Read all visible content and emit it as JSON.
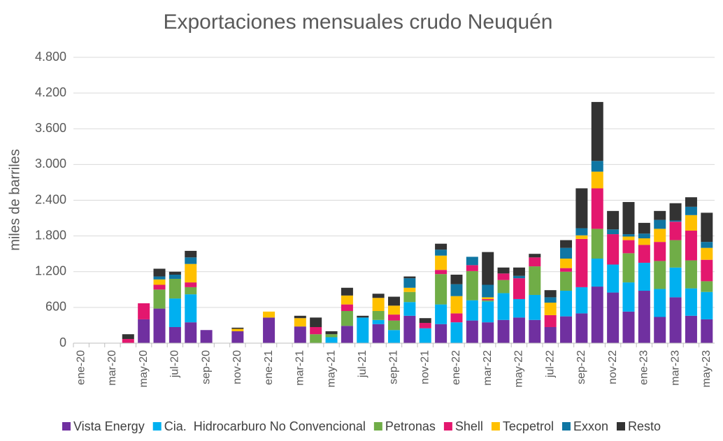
{
  "chart_data": {
    "type": "stacked_bar",
    "title": "Exportaciones mensuales crudo Neuquén",
    "y_label": "miles de barriles",
    "categories": [
      "ene-20",
      null,
      "mar-20",
      null,
      "may-20",
      null,
      "jul-20",
      null,
      "sep-20",
      null,
      "nov-20",
      null,
      "ene-21",
      null,
      "mar-21",
      null,
      "may-21",
      null,
      "jul-21",
      null,
      "sep-21",
      null,
      "nov-21",
      null,
      "ene-22",
      null,
      "mar-22",
      null,
      "may-22",
      null,
      "jul-22",
      null,
      "sep-22",
      null,
      "nov-22",
      null,
      "ene-23",
      null,
      "mar-23",
      null,
      "may-23"
    ],
    "series": [
      {
        "name": "Vista Energy",
        "color": "#7030a0",
        "values": [
          0,
          0,
          0,
          0,
          400,
          580,
          270,
          350,
          220,
          0,
          200,
          0,
          430,
          0,
          280,
          0,
          0,
          290,
          0,
          320,
          0,
          460,
          0,
          320,
          0,
          380,
          350,
          390,
          430,
          390,
          270,
          450,
          500,
          950,
          850,
          530,
          880,
          440,
          770,
          460,
          400
        ]
      },
      {
        "name": "Cia.  Hidrocarburo No Convencional",
        "color": "#00b0f0",
        "values": [
          0,
          0,
          0,
          0,
          0,
          0,
          480,
          470,
          0,
          0,
          0,
          0,
          0,
          0,
          0,
          0,
          100,
          0,
          430,
          70,
          220,
          230,
          250,
          330,
          350,
          340,
          350,
          450,
          310,
          420,
          0,
          430,
          440,
          470,
          470,
          490,
          470,
          470,
          500,
          460,
          460
        ]
      },
      {
        "name": "Petronas",
        "color": "#70ad47",
        "values": [
          0,
          0,
          0,
          0,
          0,
          320,
          330,
          120,
          0,
          0,
          0,
          0,
          0,
          0,
          0,
          150,
          50,
          250,
          0,
          150,
          160,
          170,
          0,
          510,
          0,
          490,
          20,
          220,
          0,
          480,
          0,
          320,
          0,
          500,
          0,
          490,
          0,
          470,
          460,
          470,
          180
        ]
      },
      {
        "name": "Shell",
        "color": "#e3176e",
        "values": [
          0,
          0,
          0,
          70,
          270,
          80,
          0,
          80,
          0,
          0,
          0,
          0,
          0,
          0,
          0,
          120,
          0,
          110,
          0,
          0,
          100,
          0,
          90,
          70,
          150,
          100,
          20,
          110,
          350,
          150,
          200,
          60,
          810,
          680,
          510,
          220,
          300,
          320,
          310,
          500,
          360
        ]
      },
      {
        "name": "Tecpetrol",
        "color": "#ffc000",
        "values": [
          0,
          0,
          0,
          0,
          0,
          90,
          0,
          310,
          0,
          0,
          40,
          0,
          100,
          0,
          140,
          0,
          0,
          150,
          0,
          220,
          150,
          70,
          0,
          240,
          290,
          0,
          30,
          0,
          0,
          0,
          210,
          160,
          60,
          280,
          0,
          60,
          110,
          220,
          0,
          260,
          200
        ]
      },
      {
        "name": "Exxon",
        "color": "#0f76a3",
        "values": [
          0,
          0,
          0,
          0,
          0,
          50,
          70,
          110,
          0,
          0,
          0,
          0,
          0,
          0,
          0,
          0,
          0,
          0,
          0,
          0,
          0,
          160,
          0,
          100,
          200,
          140,
          210,
          0,
          40,
          0,
          90,
          180,
          120,
          180,
          80,
          40,
          80,
          150,
          20,
          140,
          100
        ]
      },
      {
        "name": "Resto",
        "color": "#333333",
        "values": [
          0,
          0,
          0,
          80,
          0,
          130,
          50,
          110,
          0,
          0,
          20,
          0,
          0,
          0,
          40,
          160,
          50,
          130,
          30,
          70,
          150,
          30,
          80,
          100,
          160,
          0,
          550,
          100,
          140,
          60,
          120,
          130,
          670,
          990,
          310,
          540,
          180,
          150,
          290,
          160,
          490
        ]
      }
    ],
    "ylim": [
      0,
      4800
    ],
    "yticks": [
      0,
      600,
      {
        "value": 1200,
        "label": "1.200"
      },
      {
        "value": 1800,
        "label": "1.800"
      },
      {
        "value": 2400,
        "label": "2.400"
      },
      {
        "value": 3000,
        "label": "3.000"
      },
      {
        "value": 3600,
        "label": "3.600"
      },
      {
        "value": 4200,
        "label": "4.200"
      },
      {
        "value": 4800,
        "label": "4.800"
      }
    ],
    "grid": true,
    "legend": "bottom"
  }
}
